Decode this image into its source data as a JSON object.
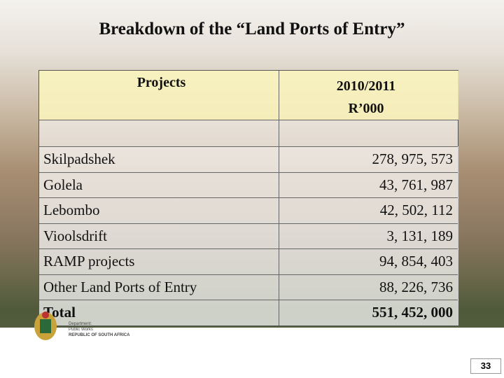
{
  "title": "Breakdown of the “Land Ports of Entry”",
  "table": {
    "header": {
      "project": "Projects",
      "period": "2010/2011",
      "unit": "R’000"
    },
    "rows": [
      [
        "Skilpadshek",
        "278, 975, 573"
      ],
      [
        "Golela",
        "43, 761, 987"
      ],
      [
        "Lebombo",
        "42, 502, 112"
      ],
      [
        "Vioolsdrift",
        "3, 131, 189"
      ],
      [
        "RAMP projects",
        "94, 854, 403"
      ],
      [
        "Other Land Ports of Entry",
        "88, 226, 736"
      ]
    ],
    "total": [
      "Total",
      "551, 452, 000"
    ]
  },
  "footer": {
    "logo": [
      "Department:",
      "Public Works",
      "REPUBLIC OF SOUTH AFRICA"
    ],
    "page_number": "33"
  }
}
